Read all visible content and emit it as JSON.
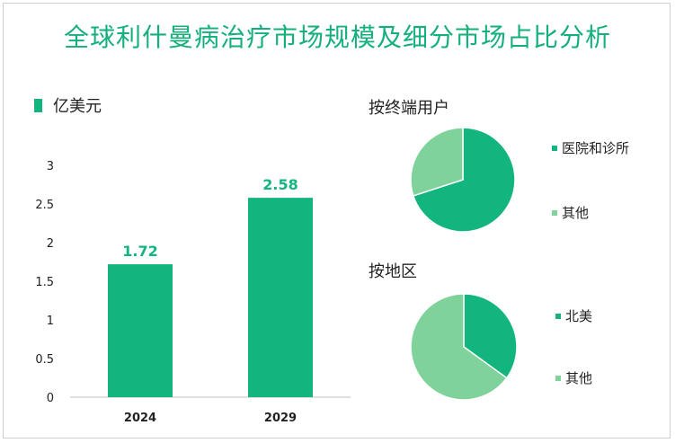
{
  "title": "全球利什曼病治疗市场规模及细分市场占比分析",
  "colors": {
    "primary": "#12b57e",
    "light": "#7fd39a",
    "title": "#13b07a"
  },
  "chart_data": [
    {
      "type": "bar",
      "legend": "亿美元",
      "categories": [
        "2024",
        "2029"
      ],
      "values": [
        1.72,
        2.58
      ],
      "value_labels": [
        "1.72",
        "2.58"
      ],
      "yticks": [
        "0",
        "0.5",
        "1",
        "1.5",
        "2",
        "2.5",
        "3"
      ],
      "ylim": [
        0,
        3
      ],
      "grid": false
    },
    {
      "type": "pie",
      "title": "按终端用户",
      "labels": [
        "医院和诊所",
        "其他"
      ],
      "values": [
        70,
        30
      ],
      "start_deg": 0
    },
    {
      "type": "pie",
      "title": "按地区",
      "labels": [
        "北美",
        "其他"
      ],
      "values": [
        35,
        65
      ],
      "start_deg": 0
    }
  ]
}
